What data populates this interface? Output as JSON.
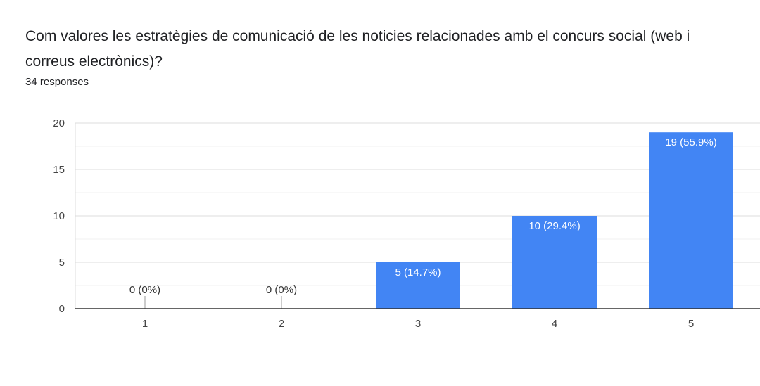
{
  "question": {
    "title": "Com valores les estratègies de comunicació de les noticies relacionades amb el concurs social (web i correus electrònics)?",
    "responses": "34 responses"
  },
  "colors": {
    "bar": "#4285f4",
    "grid": "#e8e8e8",
    "axis": "#333333"
  },
  "chart_data": {
    "type": "bar",
    "title": "Com valores les estratègies de comunicació de les noticies relacionades amb el concurs social (web i correus electrònics)?",
    "categories": [
      "1",
      "2",
      "3",
      "4",
      "5"
    ],
    "values": [
      0,
      0,
      5,
      10,
      19
    ],
    "data_labels": [
      "0 (0%)",
      "0 (0%)",
      "5 (14.7%)",
      "10 (29.4%)",
      "19 (55.9%)"
    ],
    "ylim": [
      0,
      20
    ],
    "yticks": [
      0,
      5,
      10,
      15,
      20
    ],
    "grid": true,
    "legend": "none"
  }
}
